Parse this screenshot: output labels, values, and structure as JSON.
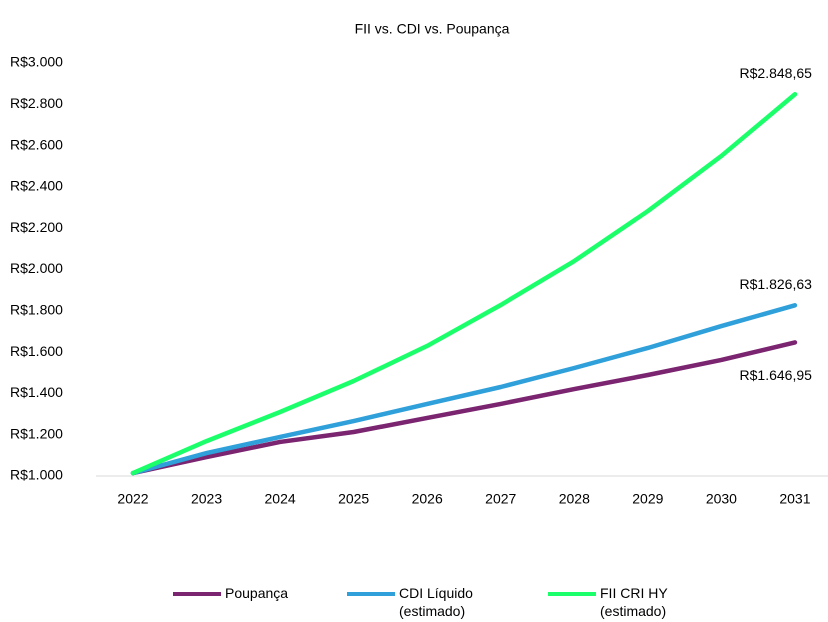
{
  "chart_data": {
    "type": "line",
    "title": "FII vs. CDI vs. Poupança",
    "categories": [
      "2022",
      "2023",
      "2024",
      "2025",
      "2026",
      "2027",
      "2028",
      "2029",
      "2030",
      "2031"
    ],
    "series": [
      {
        "name": "Poupança",
        "color": "#7b2470",
        "values": [
          1014,
          1092,
          1165,
          1213,
          1281,
          1349,
          1421,
          1489,
          1562,
          1646.95
        ],
        "value_labels": [
          null,
          null,
          null,
          null,
          null,
          null,
          null,
          null,
          null,
          "R$1.646,95"
        ]
      },
      {
        "name": "CDI Líquido (estimado)",
        "color": "#2fa0da",
        "values": [
          1014,
          1111,
          1189,
          1266,
          1349,
          1431,
          1523,
          1620,
          1726,
          1826.63
        ],
        "value_labels": [
          null,
          null,
          null,
          null,
          null,
          null,
          null,
          null,
          null,
          "R$1.826,63"
        ]
      },
      {
        "name": "FII CRI HY (estimado)",
        "color": "#1aff6a",
        "values": [
          1014,
          1169,
          1310,
          1460,
          1630,
          1828,
          2041,
          2283,
          2550,
          2848.65
        ],
        "value_labels": [
          null,
          null,
          null,
          null,
          null,
          null,
          null,
          null,
          null,
          "R$2.848,65"
        ]
      }
    ],
    "ylim": [
      1000,
      3000
    ],
    "yticks": [
      {
        "value": 1000,
        "label": "R$1.000"
      },
      {
        "value": 1200,
        "label": "R$1.200"
      },
      {
        "value": 1400,
        "label": "R$1.400"
      },
      {
        "value": 1600,
        "label": "R$1.600"
      },
      {
        "value": 1800,
        "label": "R$1.800"
      },
      {
        "value": 2000,
        "label": "R$2.000"
      },
      {
        "value": 2200,
        "label": "R$2.200"
      },
      {
        "value": 2400,
        "label": "R$2.400"
      },
      {
        "value": 2600,
        "label": "R$2.600"
      },
      {
        "value": 2800,
        "label": "R$2.800"
      },
      {
        "value": 3000,
        "label": "R$3.000"
      }
    ],
    "grid": false,
    "legend": "bottom"
  }
}
